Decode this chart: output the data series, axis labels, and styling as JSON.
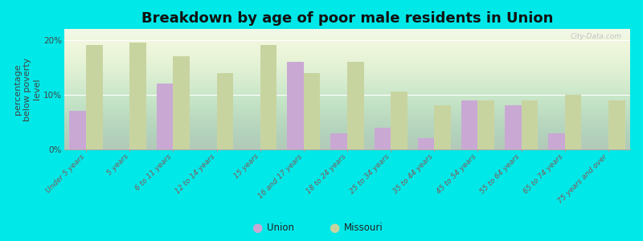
{
  "title": "Breakdown by age of poor male residents in Union",
  "ylabel": "percentage\nbelow poverty\nlevel",
  "categories": [
    "Under 5 years",
    "5 years",
    "6 to 11 years",
    "12 to 14 years",
    "15 years",
    "16 and 17 years",
    "18 to 24 years",
    "25 to 34 years",
    "35 to 44 years",
    "45 to 54 years",
    "55 to 64 years",
    "65 to 74 years",
    "75 years and over"
  ],
  "union_values": [
    7.0,
    0.0,
    12.0,
    0.0,
    0.0,
    16.0,
    3.0,
    4.0,
    2.0,
    9.0,
    8.0,
    3.0,
    0.0
  ],
  "missouri_values": [
    19.0,
    19.5,
    17.0,
    14.0,
    19.0,
    14.0,
    16.0,
    10.5,
    8.0,
    9.0,
    9.0,
    10.0,
    9.0
  ],
  "union_color": "#c9a8d4",
  "missouri_color": "#c8d4a0",
  "background_color": "#00e8e8",
  "ylim": [
    0,
    22
  ],
  "yticks": [
    0,
    10,
    20
  ],
  "ytick_labels": [
    "0%",
    "10%",
    "20%"
  ],
  "bar_width": 0.38,
  "title_fontsize": 13,
  "axis_label_fontsize": 8,
  "tick_fontsize": 6.5,
  "legend_labels": [
    "Union",
    "Missouri"
  ],
  "watermark": "City-Data.com"
}
